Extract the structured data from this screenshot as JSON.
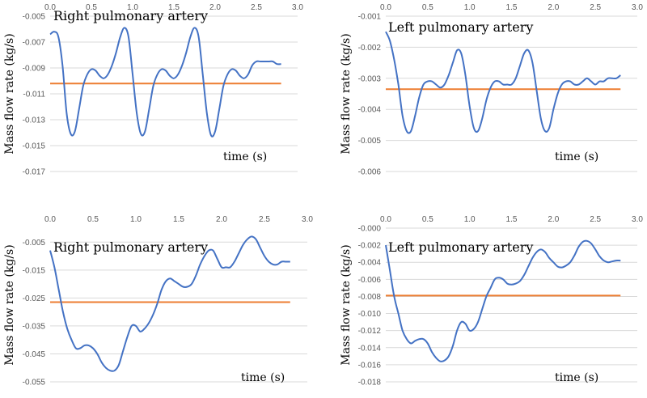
{
  "chart_data": [
    {
      "type": "line",
      "title": "Right pulmonary artery",
      "xlabel": "time (s)",
      "ylabel": "Mass flow rate (kg/s)",
      "xlim": [
        0,
        3
      ],
      "ylim": [
        -0.017,
        -0.005
      ],
      "grid": true,
      "x_ticks": [
        0.0,
        0.5,
        1.0,
        1.5,
        2.0,
        2.5,
        3.0
      ],
      "x_tick_labels": [
        "0.0",
        "0.5",
        "1.0",
        "1.5",
        "2.0",
        "2.5",
        "3.0"
      ],
      "y_ticks": [
        -0.005,
        -0.007,
        -0.009,
        -0.011,
        -0.013,
        -0.015,
        -0.017
      ],
      "y_tick_labels": [
        "-0.005",
        "-0.007",
        "-0.009",
        "-0.011",
        "-0.013",
        "-0.015",
        "-0.017"
      ],
      "series": [
        {
          "name": "mass flow rate",
          "color": "#4472c4",
          "x": [
            0.0,
            0.05,
            0.1,
            0.15,
            0.2,
            0.25,
            0.3,
            0.35,
            0.4,
            0.45,
            0.5,
            0.55,
            0.6,
            0.65,
            0.7,
            0.75,
            0.8,
            0.85,
            0.9,
            0.95,
            1.0,
            1.05,
            1.1,
            1.15,
            1.2,
            1.25,
            1.3,
            1.35,
            1.4,
            1.45,
            1.5,
            1.55,
            1.6,
            1.65,
            1.7,
            1.75,
            1.8,
            1.85,
            1.9,
            1.95,
            2.0,
            2.05,
            2.1,
            2.15,
            2.2,
            2.25,
            2.3,
            2.35,
            2.4,
            2.45,
            2.5,
            2.55,
            2.6,
            2.65,
            2.7,
            2.75,
            2.8
          ],
          "y": [
            -0.0064,
            -0.0062,
            -0.0066,
            -0.0088,
            -0.0125,
            -0.0141,
            -0.0139,
            -0.0122,
            -0.0104,
            -0.0095,
            -0.0091,
            -0.0092,
            -0.0096,
            -0.0098,
            -0.0095,
            -0.0088,
            -0.0078,
            -0.0066,
            -0.0059,
            -0.0066,
            -0.0095,
            -0.0125,
            -0.0141,
            -0.0139,
            -0.0122,
            -0.0104,
            -0.0095,
            -0.0091,
            -0.0092,
            -0.0096,
            -0.0098,
            -0.0095,
            -0.0088,
            -0.0078,
            -0.0066,
            -0.0059,
            -0.0066,
            -0.0095,
            -0.0125,
            -0.0142,
            -0.0139,
            -0.0122,
            -0.0104,
            -0.0095,
            -0.0091,
            -0.0092,
            -0.0096,
            -0.0098,
            -0.0095,
            -0.0088,
            -0.0085,
            -0.0085,
            -0.0085,
            -0.0085,
            -0.0085,
            -0.0087,
            -0.0087
          ]
        }
      ],
      "mean_line": {
        "value": -0.0102,
        "color": "#ed7d31",
        "x_range": [
          0,
          2.8
        ]
      }
    },
    {
      "type": "line",
      "title": "Left pulmonary artery",
      "xlabel": "time (s)",
      "ylabel": "Mass flow rate (kg/s)",
      "xlim": [
        0,
        3
      ],
      "ylim": [
        -0.006,
        -0.001
      ],
      "grid": true,
      "x_ticks": [
        0.0,
        0.5,
        1.0,
        1.5,
        2.0,
        2.5,
        3.0
      ],
      "x_tick_labels": [
        "0.0",
        "0.5",
        "1.0",
        "1.5",
        "2.0",
        "2.5",
        "3.0"
      ],
      "y_ticks": [
        -0.001,
        -0.002,
        -0.003,
        -0.004,
        -0.005,
        -0.006
      ],
      "y_tick_labels": [
        "-0.001",
        "-0.002",
        "-0.003",
        "-0.004",
        "-0.005",
        "-0.006"
      ],
      "series": [
        {
          "name": "mass flow rate",
          "color": "#4472c4",
          "x": [
            0.0,
            0.05,
            0.1,
            0.15,
            0.2,
            0.25,
            0.3,
            0.35,
            0.4,
            0.45,
            0.5,
            0.55,
            0.6,
            0.65,
            0.7,
            0.75,
            0.8,
            0.85,
            0.9,
            0.95,
            1.0,
            1.05,
            1.1,
            1.15,
            1.2,
            1.25,
            1.3,
            1.35,
            1.4,
            1.45,
            1.5,
            1.55,
            1.6,
            1.65,
            1.7,
            1.75,
            1.8,
            1.85,
            1.9,
            1.95,
            2.0,
            2.05,
            2.1,
            2.15,
            2.2,
            2.25,
            2.3,
            2.35,
            2.4,
            2.45,
            2.5,
            2.55,
            2.6,
            2.65,
            2.7,
            2.75,
            2.8
          ],
          "y": [
            -0.0015,
            -0.0018,
            -0.0024,
            -0.0032,
            -0.0042,
            -0.0047,
            -0.0047,
            -0.0042,
            -0.0036,
            -0.0032,
            -0.0031,
            -0.0031,
            -0.0032,
            -0.0033,
            -0.0032,
            -0.0029,
            -0.0025,
            -0.0021,
            -0.0022,
            -0.0029,
            -0.0039,
            -0.0046,
            -0.0047,
            -0.0043,
            -0.0037,
            -0.0033,
            -0.0031,
            -0.0031,
            -0.0032,
            -0.0032,
            -0.0032,
            -0.003,
            -0.0026,
            -0.0022,
            -0.0021,
            -0.0025,
            -0.0034,
            -0.0043,
            -0.0047,
            -0.0046,
            -0.004,
            -0.0035,
            -0.0032,
            -0.0031,
            -0.0031,
            -0.0032,
            -0.0032,
            -0.0031,
            -0.003,
            -0.0031,
            -0.0032,
            -0.0031,
            -0.0031,
            -0.003,
            -0.003,
            -0.003,
            -0.0029
          ]
        }
      ],
      "mean_line": {
        "value": -0.00335,
        "color": "#ed7d31",
        "x_range": [
          0,
          2.8
        ]
      }
    },
    {
      "type": "line",
      "title": "Right pulmonary artery",
      "xlabel": "time (s)",
      "ylabel": "Mass flow rate (kg/s)",
      "xlim": [
        0,
        3
      ],
      "ylim": [
        -0.055,
        0.0
      ],
      "grid": true,
      "x_ticks": [
        0.0,
        0.5,
        1.0,
        1.5,
        2.0,
        2.5,
        3.0
      ],
      "x_tick_labels": [
        "0.0",
        "0.5",
        "1.0",
        "1.5",
        "2.0",
        "2.5",
        "3.0"
      ],
      "y_ticks": [
        -0.005,
        -0.015,
        -0.025,
        -0.035,
        -0.045,
        -0.055
      ],
      "y_tick_labels": [
        "-0.005",
        "-0.015",
        "-0.025",
        "-0.035",
        "-0.045",
        "-0.055"
      ],
      "series": [
        {
          "name": "mass flow rate",
          "color": "#4472c4",
          "x": [
            0.0,
            0.05,
            0.1,
            0.15,
            0.2,
            0.25,
            0.3,
            0.35,
            0.4,
            0.45,
            0.5,
            0.55,
            0.6,
            0.65,
            0.7,
            0.75,
            0.8,
            0.85,
            0.9,
            0.95,
            1.0,
            1.05,
            1.1,
            1.15,
            1.2,
            1.25,
            1.3,
            1.35,
            1.4,
            1.45,
            1.5,
            1.55,
            1.6,
            1.65,
            1.7,
            1.75,
            1.8,
            1.85,
            1.9,
            1.95,
            2.0,
            2.05,
            2.1,
            2.15,
            2.2,
            2.25,
            2.3,
            2.35,
            2.4,
            2.45,
            2.5,
            2.55,
            2.6,
            2.65,
            2.7,
            2.75,
            2.8
          ],
          "y": [
            -0.008,
            -0.014,
            -0.022,
            -0.03,
            -0.036,
            -0.04,
            -0.043,
            -0.043,
            -0.042,
            -0.042,
            -0.043,
            -0.045,
            -0.048,
            -0.05,
            -0.051,
            -0.051,
            -0.049,
            -0.044,
            -0.039,
            -0.035,
            -0.035,
            -0.037,
            -0.036,
            -0.034,
            -0.031,
            -0.027,
            -0.022,
            -0.019,
            -0.018,
            -0.019,
            -0.02,
            -0.021,
            -0.021,
            -0.02,
            -0.017,
            -0.013,
            -0.01,
            -0.008,
            -0.008,
            -0.011,
            -0.014,
            -0.014,
            -0.014,
            -0.012,
            -0.009,
            -0.006,
            -0.004,
            -0.003,
            -0.004,
            -0.007,
            -0.01,
            -0.012,
            -0.013,
            -0.013,
            -0.012,
            -0.012,
            -0.012
          ]
        }
      ],
      "mean_line": {
        "value": -0.0265,
        "color": "#ed7d31",
        "x_range": [
          0,
          2.8
        ]
      }
    },
    {
      "type": "line",
      "title": "Left pulmonary artery",
      "xlabel": "time (s)",
      "ylabel": "Mass flow rate (kg/s)",
      "xlim": [
        0,
        3
      ],
      "ylim": [
        -0.018,
        0.0
      ],
      "grid": true,
      "x_ticks": [
        0.0,
        0.5,
        1.0,
        1.5,
        2.0,
        2.5,
        3.0
      ],
      "x_tick_labels": [
        "0.0",
        "0.5",
        "1.0",
        "1.5",
        "2.0",
        "2.5",
        "3.0"
      ],
      "y_ticks": [
        0.0,
        -0.002,
        -0.004,
        -0.006,
        -0.008,
        -0.01,
        -0.012,
        -0.014,
        -0.016,
        -0.018
      ],
      "y_tick_labels": [
        "-0.000",
        "-0.002",
        "-0.004",
        "-0.006",
        "-0.008",
        "-0.010",
        "-0.012",
        "-0.014",
        "-0.016",
        "-0.018"
      ],
      "series": [
        {
          "name": "mass flow rate",
          "color": "#4472c4",
          "x": [
            0.0,
            0.05,
            0.1,
            0.15,
            0.2,
            0.25,
            0.3,
            0.35,
            0.4,
            0.45,
            0.5,
            0.55,
            0.6,
            0.65,
            0.7,
            0.75,
            0.8,
            0.85,
            0.9,
            0.95,
            1.0,
            1.05,
            1.1,
            1.15,
            1.2,
            1.25,
            1.3,
            1.35,
            1.4,
            1.45,
            1.5,
            1.55,
            1.6,
            1.65,
            1.7,
            1.75,
            1.8,
            1.85,
            1.9,
            1.95,
            2.0,
            2.05,
            2.1,
            2.15,
            2.2,
            2.25,
            2.3,
            2.35,
            2.4,
            2.45,
            2.5,
            2.55,
            2.6,
            2.65,
            2.7,
            2.75,
            2.8
          ],
          "y": [
            -0.002,
            -0.005,
            -0.008,
            -0.01,
            -0.012,
            -0.013,
            -0.0135,
            -0.0132,
            -0.013,
            -0.013,
            -0.0135,
            -0.0145,
            -0.0152,
            -0.0156,
            -0.0155,
            -0.015,
            -0.0138,
            -0.012,
            -0.011,
            -0.0112,
            -0.012,
            -0.0118,
            -0.011,
            -0.0095,
            -0.008,
            -0.007,
            -0.006,
            -0.0058,
            -0.006,
            -0.0065,
            -0.0066,
            -0.0065,
            -0.0062,
            -0.0055,
            -0.0045,
            -0.0035,
            -0.0028,
            -0.0025,
            -0.0028,
            -0.0035,
            -0.004,
            -0.0045,
            -0.0046,
            -0.0044,
            -0.004,
            -0.0032,
            -0.0022,
            -0.0016,
            -0.0015,
            -0.0018,
            -0.0025,
            -0.0033,
            -0.0038,
            -0.004,
            -0.0039,
            -0.0038,
            -0.0038
          ]
        }
      ],
      "mean_line": {
        "value": -0.0079,
        "color": "#ed7d31",
        "x_range": [
          0,
          2.8
        ]
      }
    }
  ]
}
